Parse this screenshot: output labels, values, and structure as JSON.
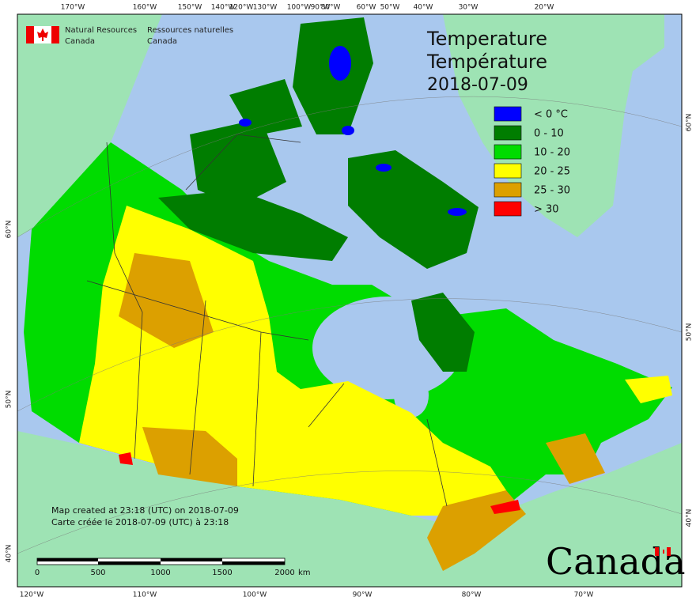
{
  "header": {
    "agency_en": [
      "Natural Resources",
      "Canada"
    ],
    "agency_fr": [
      "Ressources naturelles",
      "Canada"
    ]
  },
  "title": {
    "line1": "Temperature",
    "line2": "Température",
    "date": "2018-07-09"
  },
  "legend": [
    {
      "label": "< 0 °C",
      "color": "#0000ff"
    },
    {
      "label": "0 - 10",
      "color": "#007d00"
    },
    {
      "label": "10 - 20",
      "color": "#00dc00"
    },
    {
      "label": "20 - 25",
      "color": "#ffff00"
    },
    {
      "label": "25 - 30",
      "color": "#dca000"
    },
    {
      "label": "> 30",
      "color": "#ff0000"
    }
  ],
  "graticule": {
    "top": [
      "170°W",
      "160°W",
      "150°W",
      "140°W",
      "120°W",
      "130°W",
      "100°W",
      "90°W",
      "80°W",
      "60°W",
      "50°W",
      "40°W",
      "30°W",
      "20°W"
    ],
    "bottom": [
      "120°W",
      "110°W",
      "100°W",
      "90°W",
      "80°W",
      "70°W"
    ],
    "left": [
      "60°N",
      "50°N",
      "40°N"
    ],
    "right": [
      "60°N",
      "50°N",
      "40°N"
    ]
  },
  "notes": [
    "Map created at 23:18 (UTC) on 2018-07-09",
    "Carte créée le 2018-07-09 (UTC) à 23:18"
  ],
  "scale_bar": {
    "labels": [
      "0",
      "500",
      "1000",
      "1500",
      "2000"
    ],
    "unit": "km"
  },
  "wordmark": "Canada"
}
